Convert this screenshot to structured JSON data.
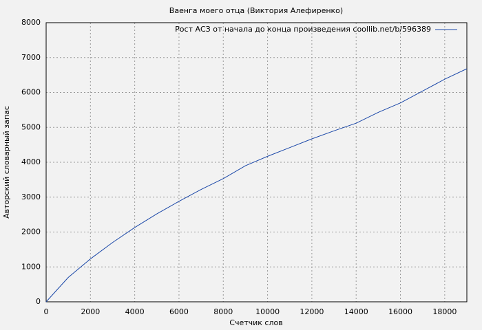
{
  "chart_data": {
    "type": "line",
    "title": "Ваенга моего отца (Виктория Алефиренко)",
    "x_label": "Счетчик слов",
    "y_label": "Авторский словарный запас",
    "x": [
      0,
      500,
      1000,
      2000,
      3000,
      4000,
      5000,
      6000,
      7000,
      8000,
      9000,
      10000,
      11000,
      12000,
      13000,
      14000,
      15000,
      16000,
      17000,
      18000,
      19000
    ],
    "series": [
      {
        "name": "Рост АСЗ от начала до конца произведения coollib.net/b/596389",
        "color": "#1a47a8",
        "values": [
          0,
          350,
          700,
          1230,
          1700,
          2130,
          2520,
          2880,
          3220,
          3530,
          3900,
          4170,
          4420,
          4670,
          4900,
          5120,
          5430,
          5700,
          6040,
          6380,
          6680
        ]
      }
    ],
    "xlim": [
      0,
      19000
    ],
    "xticks": [
      0,
      2000,
      4000,
      6000,
      8000,
      10000,
      12000,
      14000,
      16000,
      18000
    ],
    "ylim": [
      0,
      8000
    ],
    "yticks": [
      0,
      1000,
      2000,
      3000,
      4000,
      5000,
      6000,
      7000,
      8000
    ],
    "grid": true,
    "legend": "top-right"
  }
}
